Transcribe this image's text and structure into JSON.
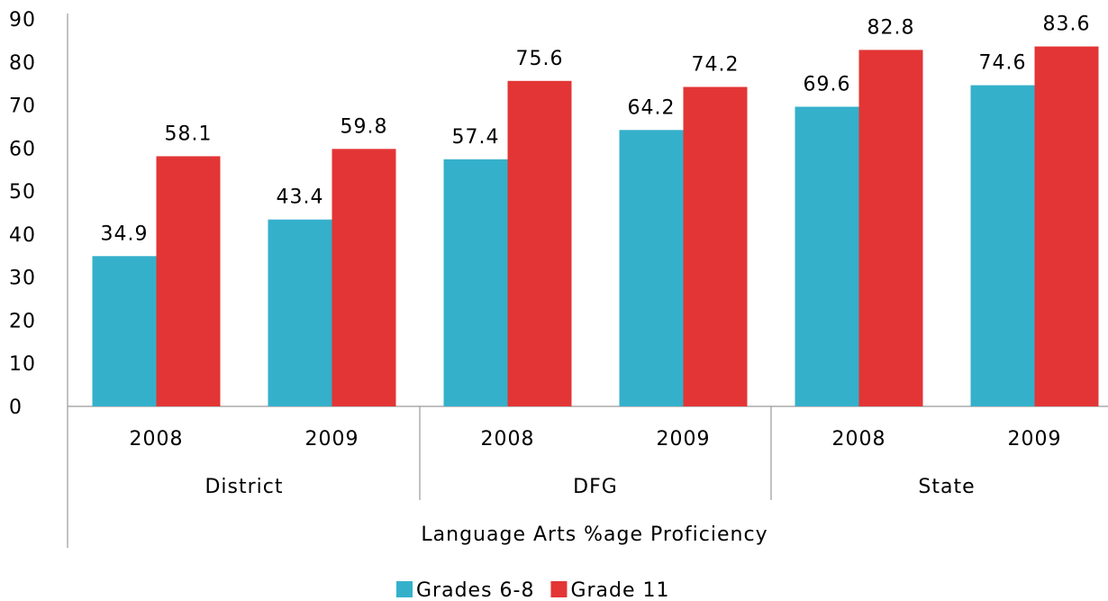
{
  "chart_data": {
    "type": "bar",
    "x_label": "Language Arts %age Proficiency",
    "categories": [
      "2008",
      "2009",
      "2008",
      "2009",
      "2008",
      "2009"
    ],
    "groups": [
      "District",
      "DFG",
      "State"
    ],
    "series": [
      {
        "name": "Grades 6-8",
        "color": "#35b0cb",
        "values": [
          34.9,
          43.4,
          57.4,
          64.2,
          69.6,
          74.6
        ]
      },
      {
        "name": "Grade 11",
        "color": "#e33535",
        "values": [
          58.1,
          59.8,
          75.6,
          74.2,
          82.8,
          83.6
        ]
      }
    ],
    "ylim": [
      0,
      90
    ],
    "yticks": [
      0,
      10,
      20,
      30,
      40,
      50,
      60,
      70,
      80,
      90
    ],
    "grid": false,
    "legend": "bottom"
  }
}
